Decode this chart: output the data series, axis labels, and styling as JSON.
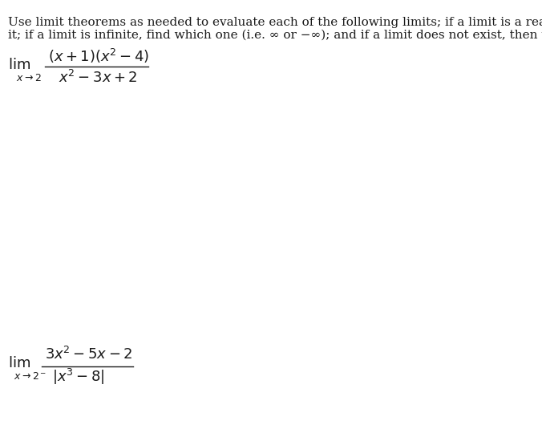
{
  "background_color": "#ffffff",
  "text_color": "#1a1a1a",
  "instruction_line1": "Use limit theorems as needed to evaluate each of the following limits; if a limit is a real number, find",
  "instruction_line2": "it; if a limit is infinite, find which one (i.e. ∞ or −∞); and if a limit does not exist, then write DNE.",
  "limit1": {
    "lim_label": "lim",
    "subscript": "x→2",
    "numerator": "(x + 1)(x² − 4)",
    "denominator": "x² − 3x + 2"
  },
  "limit2": {
    "lim_label": "lim",
    "subscript": "x→2⁻",
    "numerator": "3x² − 5x − 2",
    "denominator": "|x³ − 8|"
  },
  "figsize": [
    6.76,
    5.5
  ],
  "dpi": 100
}
